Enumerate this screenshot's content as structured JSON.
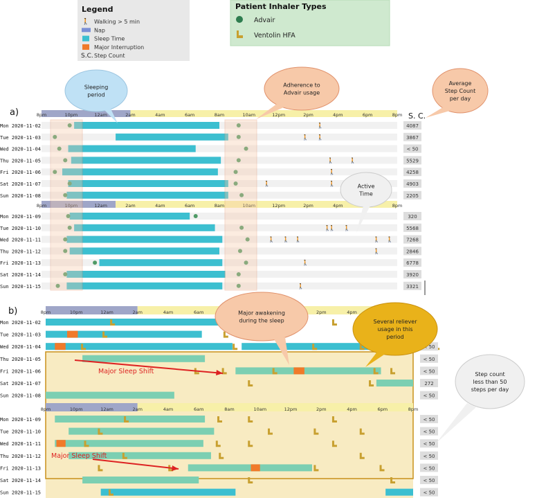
{
  "legend": {
    "title": "Legend",
    "items": [
      {
        "glyph": "🚶",
        "label": "Walking > 5 min",
        "icon": "walking-icon"
      },
      {
        "glyph": "",
        "label": "Nap",
        "icon": "nap-bed-icon",
        "color": "#7b8fd6"
      },
      {
        "glyph": "",
        "label": "Sleep Time",
        "icon": "sleep-swatch",
        "color": "#3cbfd0"
      },
      {
        "glyph": "",
        "label": "Major Interruption",
        "icon": "interruption-swatch",
        "color": "#f07a2a"
      },
      {
        "glyph": "S.C.",
        "label": "Step Count",
        "icon": "step-count-text"
      }
    ]
  },
  "inhaler_legend": {
    "title": "Patient Inhaler Types",
    "items": [
      {
        "label": "Advair",
        "icon": "advair-dot-icon",
        "color": "#2e7d4f"
      },
      {
        "label": "Ventolin HFA",
        "icon": "ventolin-inhaler-icon",
        "color": "#c8a030"
      }
    ]
  },
  "colors": {
    "sleep": "#3cbfd0",
    "sleep_light": "#7ccfb2",
    "interruption": "#f07a2a",
    "night_band": "#9fa6c8",
    "day_band": "#f7f0a8",
    "advair": "#4f9a66",
    "ventolin": "#c8a030",
    "highlight_fill": "#f5e3a8",
    "highlight_stroke": "#c8901a",
    "callout_blue": "#bfe1f5",
    "callout_orange": "#f7c9a9",
    "callout_gold": "#e9b21a",
    "callout_grey": "#f0f0f0"
  },
  "chart_data": [
    {
      "panel": "a)",
      "type": "timeline",
      "tick_labels": [
        "8pm",
        "10pm",
        "12am",
        "2am",
        "4am",
        "6am",
        "8am",
        "10am",
        "12pm",
        "2pm",
        "4pm",
        "6pm",
        "8pm"
      ],
      "sc_header": "S. C.",
      "weeks": [
        {
          "rows": [
            {
              "day": "Mon 2020-11-02",
              "sleep": [
                [
                  22.2,
                  32
                ]
              ],
              "advair": [
                21.9,
                33.3
              ],
              "walk": [
                38.8
              ],
              "sc": "4087"
            },
            {
              "day": "Tue 2020-11-03",
              "sleep": [
                [
                  25,
                  32.6
                ]
              ],
              "advair": [
                20.9,
                33.3
              ],
              "walk": [
                37.8,
                38.8
              ],
              "sc": "3867"
            },
            {
              "day": "Wed 2020-11-04",
              "sleep": [
                [
                  21.8,
                  30.4
                ]
              ],
              "advair": [
                21.2,
                33.8
              ],
              "walk": [],
              "sc": "< 50"
            },
            {
              "day": "Thu 2020-11-05",
              "sleep": [
                [
                  22,
                  32.1
                ]
              ],
              "advair": [
                21.6,
                33.3
              ],
              "walk": [
                39.5,
                41
              ],
              "sc": "5529"
            },
            {
              "day": "Fri 2020-11-06",
              "sleep": [
                [
                  21.4,
                  31.9
                ]
              ],
              "advair": [
                20.9,
                33.1
              ],
              "walk": [
                39.6
              ],
              "sc": "4258"
            },
            {
              "day": "Sat 2020-11-07",
              "sleep": [
                [
                  21.8,
                  32.6
                ]
              ],
              "advair": [
                21.9,
                33.1
              ],
              "walk": [
                35.2,
                39.6
              ],
              "sc": "4903"
            },
            {
              "day": "Sun 2020-11-08",
              "sleep": [
                [
                  21.7,
                  32.6
                ]
              ],
              "advair": [
                21.6,
                33.5
              ],
              "walk": [],
              "sc": "2205"
            }
          ]
        },
        {
          "rows": [
            {
              "day": "Mon 2020-11-09",
              "sleep": [
                [
                  21.9,
                  30
                ]
              ],
              "advair": [
                21.8,
                30.4
              ],
              "walk": [],
              "sc": "320"
            },
            {
              "day": "Tue 2020-11-10",
              "sleep": [
                [
                  22.2,
                  31.7
                ]
              ],
              "advair": [
                21.9,
                33.5
              ],
              "walk": [
                39.3,
                39.6,
                40.6
              ],
              "sc": "5568"
            },
            {
              "day": "Wed 2020-11-11",
              "sleep": [
                [
                  21.7,
                  32.2
                ]
              ],
              "advair": [
                21.6,
                33.9
              ],
              "walk": [
                35.5,
                36.5,
                37.3,
                42.6,
                43.5
              ],
              "sc": "7268"
            },
            {
              "day": "Thu 2020-11-12",
              "sleep": [
                [
                  21.9,
                  32
                ]
              ],
              "advair": [
                21.6,
                33.4
              ],
              "walk": [
                42.6
              ],
              "sc": "2846"
            },
            {
              "day": "Fri 2020-11-13",
              "sleep": [
                [
                  23.9,
                  32.2
                ]
              ],
              "advair": [
                23.6,
                33.8
              ],
              "walk": [
                37.8
              ],
              "sc": "6778"
            },
            {
              "day": "Sat 2020-11-14",
              "sleep": [
                [
                  21.7,
                  32.4
                ]
              ],
              "advair": [
                21.6,
                33.3
              ],
              "walk": [],
              "sc": "3920"
            },
            {
              "day": "Sun 2020-11-15",
              "sleep": [
                [
                  21.7,
                  32.2
                ]
              ],
              "advair": [
                21.1,
                33.3
              ],
              "walk": [
                37.5
              ],
              "sc": "3321"
            }
          ]
        }
      ]
    },
    {
      "panel": "b)",
      "type": "timeline",
      "tick_labels": [
        "8pm",
        "10pm",
        "12am",
        "2am",
        "4am",
        "6am",
        "8am",
        "10am",
        "12pm",
        "2pm",
        "4pm",
        "6pm",
        "8pm"
      ],
      "weeks": [
        {
          "rows": [
            {
              "day": "Mon 2020-11-02",
              "sleep": [
                [
                  20,
                  32.2
                ]
              ],
              "light": [],
              "interrupt": [],
              "ventolin": [
                24.3,
                38.8
              ],
              "sc": ""
            },
            {
              "day": "Tue 2020-11-03",
              "sleep": [
                [
                  20,
                  30.2
                ]
              ],
              "light": [],
              "interrupt": [
                [
                  21.4,
                  22.1
                ]
              ],
              "ventolin": [
                23.8,
                31.7
              ],
              "sc": ""
            },
            {
              "day": "Wed 2020-11-04",
              "sleep": [
                [
                  20,
                  32.2
                ],
                [
                  32.8,
                  44
                ]
              ],
              "light": [],
              "interrupt": [
                [
                  20.6,
                  21.3
                ]
              ],
              "ventolin": [
                22.4,
                32.3,
                37.5,
                40.6,
                45.5
              ],
              "sc": "< 50"
            },
            {
              "day": "Thu 2020-11-05",
              "sleep": [],
              "light": [
                [
                  22.4,
                  30.4
                ]
              ],
              "interrupt": [],
              "ventolin": [],
              "sc": "< 50"
            },
            {
              "day": "Fri 2020-11-06",
              "sleep": [],
              "light": [
                [
                  32.4,
                  41.9
                ]
              ],
              "interrupt": [
                [
                  36.2,
                  36.9
                ]
              ],
              "ventolin": [
                29.8,
                31.6,
                34.9,
                41.5,
                42.6
              ],
              "sc": "< 50"
            },
            {
              "day": "Sat 2020-11-07",
              "sleep": [],
              "light": [
                [
                  41.6,
                  44
                ]
              ],
              "interrupt": [],
              "ventolin": [
                33.3,
                41.2
              ],
              "sc": "272"
            },
            {
              "day": "Sun 2020-11-08",
              "sleep": [],
              "light": [
                [
                  20,
                  28.4
                ]
              ],
              "interrupt": [],
              "ventolin": [],
              "sc": "< 50"
            }
          ]
        },
        {
          "rows": [
            {
              "day": "Mon 2020-11-09",
              "sleep": [],
              "light": [
                [
                  20.6,
                  30.4
                ]
              ],
              "interrupt": [],
              "ventolin": [
                25.2,
                31.3,
                33.3,
                38.8
              ],
              "sc": "< 50"
            },
            {
              "day": "Tue 2020-11-10",
              "sleep": [],
              "light": [
                [
                  21.5,
                  31
                ]
              ],
              "interrupt": [],
              "ventolin": [
                23.5,
                34.6,
                37.6,
                40.6
              ],
              "sc": "< 50"
            },
            {
              "day": "Wed 2020-11-11",
              "sleep": [],
              "light": [
                [
                  20.6,
                  30.3
                ]
              ],
              "interrupt": [
                [
                  20.7,
                  21.3
                ]
              ],
              "ventolin": [
                22.6,
                31.2,
                33.3,
                38.8
              ],
              "sc": "< 50"
            },
            {
              "day": "Thu 2020-11-12",
              "sleep": [],
              "light": [
                [
                  21.5,
                  30.8
                ]
              ],
              "interrupt": [],
              "ventolin": [
                25.1,
                31.4,
                40.6
              ],
              "sc": "< 50"
            },
            {
              "day": "Fri 2020-11-13",
              "sleep": [],
              "light": [
                [
                  29.3,
                  37.4
                ]
              ],
              "interrupt": [
                [
                  33.4,
                  34
                ]
              ],
              "ventolin": [
                23.5,
                28.1,
                37.6,
                41.9
              ],
              "sc": "< 50"
            },
            {
              "day": "Sat 2020-11-14",
              "sleep": [],
              "light": [
                [
                  22.4,
                  30
                ]
              ],
              "interrupt": [],
              "ventolin": [
                33.3,
                42.6
              ],
              "sc": "< 50"
            },
            {
              "day": "Sun 2020-11-15",
              "sleep": [
                [
                  23.6,
                  32.4
                ],
                [
                  42.2,
                  44
                ]
              ],
              "light": [],
              "interrupt": [],
              "ventolin": [
                24.2
              ],
              "sc": "< 50"
            }
          ]
        }
      ]
    }
  ],
  "callouts": {
    "sleeping_period": "Sleeping\nperiod",
    "adherence": "Adherence to\nAdvair usage",
    "avg_steps": "Average\nStep Count\nper day",
    "active_time": "Active\nTime",
    "major_awakening": "Major awakening\nduring the sleep",
    "reliever_usage": "Several reliever\nusage in this\nperiod",
    "step_less_50": "Step count\nless than 50\nsteps per day",
    "sleep_shift_1": "Major Sleep Shift",
    "sleep_shift_2": "Major Sleep Shift"
  }
}
